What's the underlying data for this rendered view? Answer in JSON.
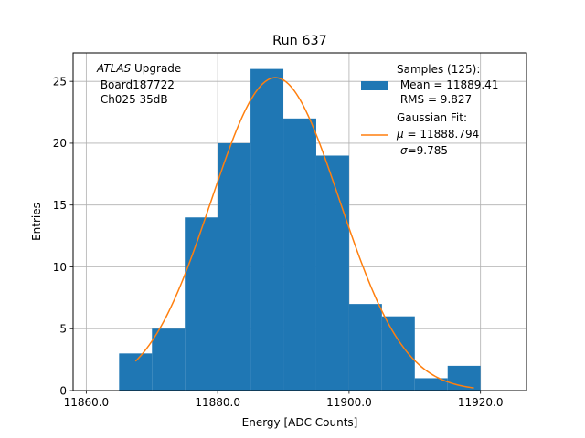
{
  "chart_data": {
    "type": "bar",
    "title": "Run 637",
    "xlabel": "Energy [ADC Counts]",
    "ylabel": "Entries",
    "xlim": [
      11858.0,
      11927.0
    ],
    "ylim": [
      0,
      27.3
    ],
    "x_ticks": [
      11860.0,
      11880.0,
      11900.0,
      11920.0
    ],
    "x_tick_labels": [
      "11860.0",
      "11880.0",
      "11900.0",
      "11920.0"
    ],
    "y_ticks": [
      0,
      5,
      10,
      15,
      20,
      25
    ],
    "y_tick_labels": [
      "0",
      "5",
      "10",
      "15",
      "20",
      "25"
    ],
    "grid": true,
    "bin_edges": [
      11865,
      11870,
      11875,
      11880,
      11885,
      11890,
      11895,
      11900,
      11905,
      11910,
      11915,
      11920
    ],
    "values": [
      3,
      5,
      14,
      20,
      26,
      22,
      19,
      7,
      6,
      1,
      2
    ],
    "fit": {
      "amplitude": 25.3,
      "mu": 11888.794,
      "sigma": 9.785,
      "x_range": [
        11867.5,
        11919
      ]
    },
    "colors": {
      "bars": "#1f77b4",
      "fit": "#ff7f0e",
      "grid": "#b0b0b0"
    },
    "annotation": {
      "line1_italic": "ATLAS",
      "line1_rest": " Upgrade",
      "line2": " Board187722",
      "line3": " Ch025 35dB"
    },
    "legend": {
      "location": "upper right",
      "hist_lines": [
        "Samples (125):",
        " Mean = 11889.41",
        " RMS = 9.827"
      ],
      "fit_title": "Gaussian Fit:",
      "fit_mu_symbol": "μ",
      "fit_mu_rest": " = 11888.794",
      "fit_sigma_symbol": "σ",
      "fit_sigma_rest": "=9.785"
    }
  }
}
